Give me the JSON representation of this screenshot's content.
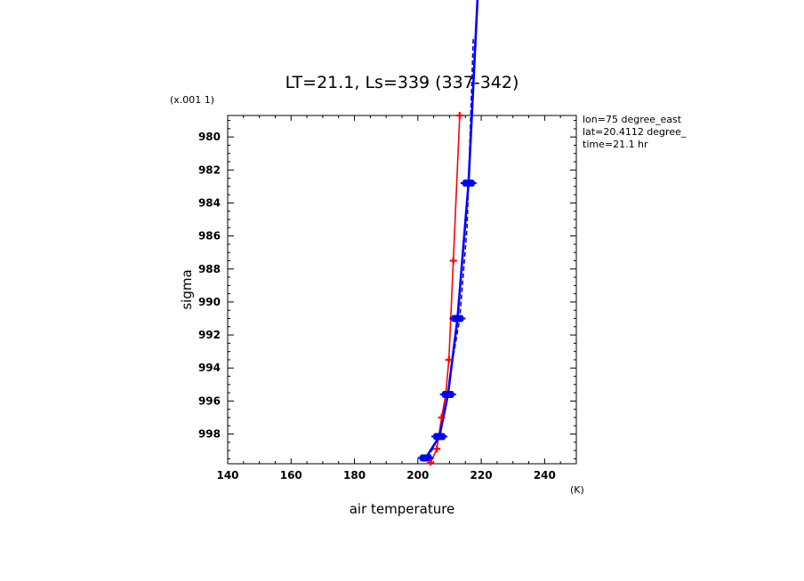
{
  "chart_data": {
    "type": "line",
    "title": "LT=21.1, Ls=339 (337-342)",
    "xlabel": "air temperature",
    "ylabel": "sigma",
    "x_unit": "(K)",
    "y_multiplier": "(x.001 1)",
    "xlim": [
      140,
      250
    ],
    "ylim": [
      999.8,
      978.7
    ],
    "x_ticks": [
      140,
      160,
      180,
      200,
      220,
      240
    ],
    "y_ticks": [
      980,
      982,
      984,
      986,
      988,
      990,
      992,
      994,
      996,
      998
    ],
    "annotations": [
      "lon=75 degree_east",
      "lat=20.4112 degree_",
      "time=21.1 hr"
    ],
    "colors": {
      "red": "#ff0000",
      "blue": "#0000ff"
    },
    "series": [
      {
        "style": "red-solid",
        "color": "#ff0000",
        "points": [
          [
            204.0,
            999.75
          ],
          [
            206.0,
            998.9
          ],
          [
            207.5,
            997.0
          ],
          [
            208.8,
            995.6
          ],
          [
            209.8,
            993.5
          ],
          [
            211.2,
            987.5
          ],
          [
            213.2,
            978.7
          ]
        ]
      },
      {
        "style": "blue-dashed",
        "color": "#0000ff",
        "points": [
          [
            203.2,
            999.45
          ],
          [
            206.8,
            998.1
          ],
          [
            209.5,
            995.6
          ],
          [
            211.0,
            993.5
          ],
          [
            213.2,
            991.0
          ],
          [
            215.5,
            985.5
          ],
          [
            217.5,
            974.0
          ]
        ]
      },
      {
        "style": "blue-solid",
        "color": "#0000ff",
        "points": [
          [
            202.5,
            999.45
          ],
          [
            206.8,
            998.15
          ],
          [
            209.5,
            995.6
          ],
          [
            212.5,
            991.0
          ],
          [
            216.0,
            982.8
          ],
          [
            219.0,
            971.0
          ]
        ]
      }
    ],
    "markers": {
      "red": [
        [
          204.0,
          999.75
        ],
        [
          206.0,
          998.9
        ],
        [
          207.5,
          997.0
        ],
        [
          209.8,
          993.5
        ],
        [
          211.2,
          987.5
        ],
        [
          213.2,
          978.7
        ]
      ],
      "blue": [
        [
          202.5,
          999.45
        ],
        [
          206.8,
          998.15
        ],
        [
          209.5,
          995.6
        ],
        [
          212.5,
          991.0
        ],
        [
          216.0,
          982.8
        ]
      ]
    }
  }
}
